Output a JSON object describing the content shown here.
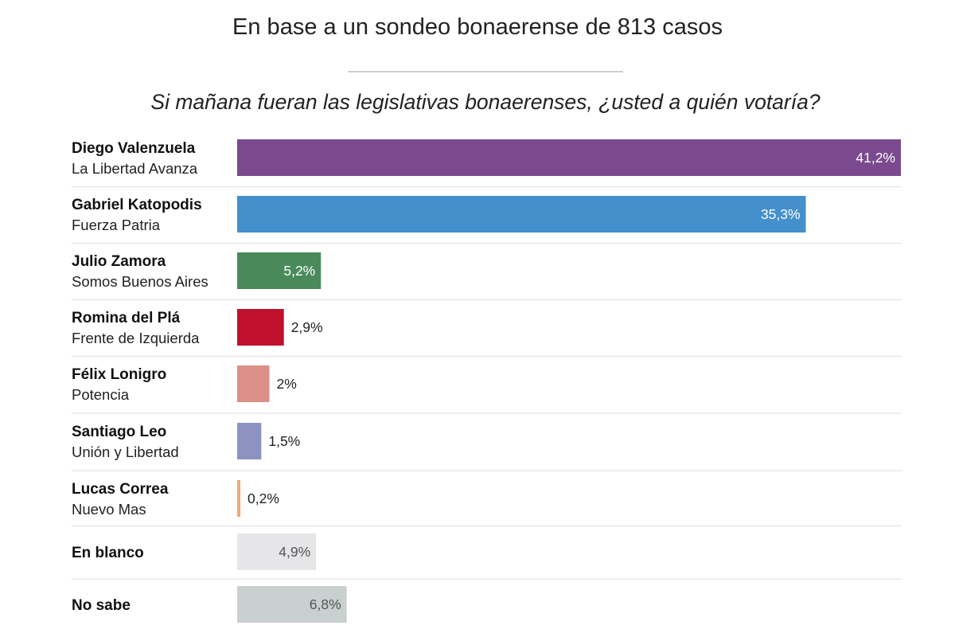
{
  "header": {
    "title": "En base a un sondeo bonaerense de 813 casos",
    "subtitle": "Si mañana fueran las legislativas bonaerenses, ¿usted a quién votaría?"
  },
  "chart_data": {
    "type": "bar",
    "orientation": "horizontal",
    "title": "En base a un sondeo bonaerense de 813 casos",
    "subtitle": "Si mañana fueran las legislativas bonaerenses, ¿usted a quién votaría?",
    "unit": "%",
    "xlim": [
      0,
      41.2
    ],
    "grid": false,
    "rows": [
      {
        "name": "Diego Valenzuela",
        "party": "La Libertad Avanza",
        "value": 41.2,
        "label": "41,2%",
        "color": "#7b4a8e",
        "label_color": "#ffffff",
        "label_inside": true
      },
      {
        "name": "Gabriel Katopodis",
        "party": "Fuerza Patria",
        "value": 35.3,
        "label": "35,3%",
        "color": "#4490cc",
        "label_color": "#ffffff",
        "label_inside": true
      },
      {
        "name": "Julio Zamora",
        "party": "Somos Buenos Aires",
        "value": 5.2,
        "label": "5,2%",
        "color": "#4a8a5a",
        "label_color": "#ffffff",
        "label_inside": true
      },
      {
        "name": "Romina del Plá",
        "party": "Frente de Izquierda",
        "value": 2.9,
        "label": "2,9%",
        "color": "#c0102e",
        "label_color": "#222222",
        "label_inside": false
      },
      {
        "name": "Félix Lonigro",
        "party": "Potencia",
        "value": 2.0,
        "label": "2%",
        "color": "#dc8f86",
        "label_color": "#222222",
        "label_inside": false
      },
      {
        "name": "Santiago Leo",
        "party": "Unión y Libertad",
        "value": 1.5,
        "label": "1,5%",
        "color": "#8d93c0",
        "label_color": "#222222",
        "label_inside": false
      },
      {
        "name": "Lucas Correa",
        "party": "Nuevo Mas",
        "value": 0.2,
        "label": "0,2%",
        "color": "#f0a878",
        "label_color": "#222222",
        "label_inside": false
      },
      {
        "name": "En blanco",
        "party": "",
        "value": 4.9,
        "label": "4,9%",
        "color": "#e6e5e8",
        "label_color": "#555555",
        "label_inside": true
      },
      {
        "name": "No sabe",
        "party": "",
        "value": 6.8,
        "label": "6,8%",
        "color": "#c9d0d0",
        "label_color": "#555555",
        "label_inside": true
      }
    ]
  }
}
